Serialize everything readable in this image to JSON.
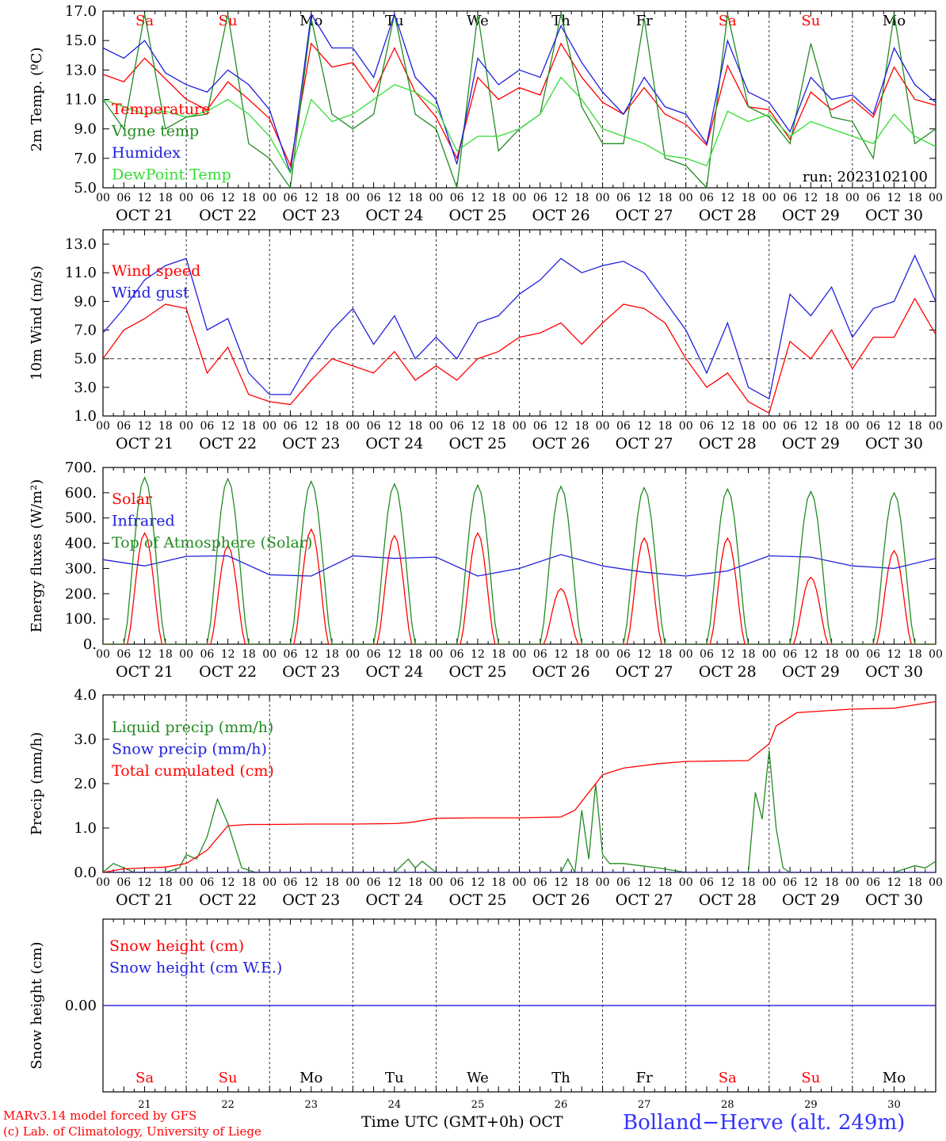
{
  "x_axis": {
    "days": 10,
    "hour_labels": [
      "00",
      "06",
      "12",
      "18"
    ],
    "end_label": "00",
    "date_labels": [
      "OCT 21",
      "OCT 22",
      "OCT 23",
      "OCT 24",
      "OCT 25",
      "OCT 26",
      "OCT 27",
      "OCT 28",
      "OCT 29",
      "OCT 30"
    ],
    "weekday_labels": [
      "Sa",
      "Su",
      "Mo",
      "Tu",
      "We",
      "Th",
      "Fr",
      "Sa",
      "Su",
      "Mo"
    ],
    "weekday_colors": [
      "#ff0000",
      "#ff0000",
      "#000000",
      "#000000",
      "#000000",
      "#000000",
      "#000000",
      "#ff0000",
      "#ff0000",
      "#000000"
    ],
    "day_numbers": [
      "21",
      "22",
      "23",
      "24",
      "25",
      "26",
      "27",
      "28",
      "29",
      "30"
    ],
    "title": "Time UTC (GMT+0h)",
    "month": "OCT"
  },
  "footer": {
    "credit_line1": "MARv3.14 model forced by GFS",
    "credit_line2": "(c) Lab. of Climatology, University of Liege",
    "location": "Bolland−Herve (alt. 249m)"
  },
  "chart_data": [
    {
      "type": "line",
      "ylabel": "2m Temp. (ºC)",
      "ylim": [
        5.0,
        17.0
      ],
      "yticks": [
        "5.0",
        "7.0",
        "9.0",
        "11.0",
        "13.0",
        "15.0",
        "17.0"
      ],
      "annotation": "run: 2023102100",
      "x_unit": "hours since Oct 21 00 UTC",
      "series": [
        {
          "name": "Temperature",
          "color": "#ff0000",
          "x": [
            0,
            6,
            12,
            18,
            24,
            30,
            36,
            42,
            48,
            54,
            60,
            66,
            72,
            78,
            84,
            90,
            96,
            102,
            108,
            114,
            120,
            126,
            132,
            138,
            144,
            150,
            156,
            162,
            168,
            174,
            180,
            186,
            192,
            198,
            204,
            210,
            216,
            222,
            228,
            234,
            240
          ],
          "y": [
            12.7,
            12.2,
            13.8,
            12.4,
            11.0,
            10.3,
            12.2,
            11.0,
            9.7,
            6.5,
            14.8,
            13.2,
            13.5,
            11.5,
            14.5,
            11.5,
            9.8,
            7.0,
            12.5,
            11.0,
            11.8,
            11.3,
            14.8,
            12.5,
            10.8,
            10.0,
            11.8,
            10.0,
            9.3,
            7.9,
            13.3,
            10.5,
            10.3,
            8.3,
            11.5,
            10.3,
            11.0,
            9.8,
            13.2,
            11.0,
            10.6
          ]
        },
        {
          "name": "Vigne temp",
          "color": "#228b22",
          "x": [
            0,
            6,
            12,
            18,
            24,
            30,
            36,
            42,
            48,
            54,
            60,
            66,
            72,
            78,
            84,
            90,
            96,
            102,
            108,
            114,
            120,
            126,
            132,
            138,
            144,
            150,
            156,
            162,
            168,
            174,
            180,
            186,
            192,
            198,
            204,
            210,
            216,
            222,
            228,
            234,
            240
          ],
          "y": [
            11.0,
            9.0,
            16.8,
            9.0,
            9.8,
            10.0,
            16.8,
            8.0,
            7.0,
            5.0,
            16.5,
            10.0,
            9.0,
            10.0,
            16.8,
            10.0,
            9.0,
            5.0,
            16.8,
            7.5,
            9.0,
            10.0,
            16.8,
            10.5,
            8.0,
            8.0,
            16.5,
            7.0,
            6.5,
            5.0,
            16.8,
            10.5,
            9.8,
            8.0,
            14.8,
            9.8,
            9.5,
            7.0,
            16.8,
            8.0,
            9.0
          ]
        },
        {
          "name": "Humidex",
          "color": "#2020dd",
          "x": [
            0,
            6,
            12,
            18,
            24,
            30,
            36,
            42,
            48,
            54,
            60,
            66,
            72,
            78,
            84,
            90,
            96,
            102,
            108,
            114,
            120,
            126,
            132,
            138,
            144,
            150,
            156,
            162,
            168,
            174,
            180,
            186,
            192,
            198,
            204,
            210,
            216,
            222,
            228,
            234,
            240
          ],
          "y": [
            14.5,
            13.8,
            15.0,
            12.8,
            12.0,
            11.5,
            13.0,
            12.0,
            10.3,
            6.0,
            16.8,
            14.5,
            14.5,
            12.5,
            16.8,
            12.5,
            11.0,
            6.6,
            13.8,
            12.0,
            13.0,
            12.5,
            16.0,
            13.5,
            11.5,
            10.0,
            12.5,
            10.5,
            10.0,
            8.0,
            15.0,
            11.5,
            10.8,
            8.8,
            12.5,
            11.0,
            11.3,
            10.0,
            14.5,
            12.0,
            10.8
          ]
        },
        {
          "name": "DewPoint Temp",
          "color": "#33dd33",
          "x": [
            0,
            6,
            12,
            18,
            24,
            30,
            36,
            42,
            48,
            54,
            60,
            66,
            72,
            78,
            84,
            90,
            96,
            102,
            108,
            114,
            120,
            126,
            132,
            138,
            144,
            150,
            156,
            162,
            168,
            174,
            180,
            186,
            192,
            198,
            204,
            210,
            216,
            222,
            228,
            234,
            240
          ],
          "y": [
            11.0,
            10.5,
            10.0,
            10.2,
            9.8,
            10.2,
            11.0,
            10.0,
            8.5,
            6.0,
            11.0,
            9.5,
            10.0,
            11.0,
            12.0,
            11.5,
            10.5,
            7.5,
            8.5,
            8.5,
            9.0,
            10.0,
            12.5,
            11.0,
            9.0,
            8.5,
            8.0,
            7.2,
            7.0,
            6.5,
            10.2,
            9.5,
            10.0,
            8.5,
            9.5,
            9.0,
            8.5,
            8.0,
            10.0,
            8.5,
            7.8
          ]
        }
      ]
    },
    {
      "type": "line",
      "ylabel": "10m Wind (m/s)",
      "ylim": [
        1.0,
        14.0
      ],
      "yticks": [
        "1.0",
        "3.0",
        "5.0",
        "7.0",
        "9.0",
        "11.0",
        "13.0"
      ],
      "reference_line": 5.0,
      "series": [
        {
          "name": "Wind speed",
          "color": "#ff0000",
          "x": [
            0,
            6,
            12,
            18,
            24,
            30,
            36,
            42,
            48,
            54,
            60,
            66,
            72,
            78,
            84,
            90,
            96,
            102,
            108,
            114,
            120,
            126,
            132,
            138,
            144,
            150,
            156,
            162,
            168,
            174,
            180,
            186,
            192,
            198,
            204,
            210,
            216,
            222,
            228,
            234,
            240
          ],
          "y": [
            5.0,
            7.0,
            7.8,
            8.8,
            8.5,
            4.0,
            5.8,
            2.5,
            2.0,
            1.8,
            3.5,
            5.0,
            4.5,
            4.0,
            5.5,
            3.5,
            4.5,
            3.5,
            5.0,
            5.5,
            6.5,
            6.8,
            7.5,
            6.0,
            7.5,
            8.8,
            8.5,
            7.5,
            5.0,
            3.0,
            4.0,
            2.0,
            1.2,
            6.2,
            5.0,
            7.0,
            4.3,
            6.5,
            6.5,
            9.2,
            6.7
          ]
        },
        {
          "name": "Wind gust",
          "color": "#2020dd",
          "x": [
            0,
            6,
            12,
            18,
            24,
            30,
            36,
            42,
            48,
            54,
            60,
            66,
            72,
            78,
            84,
            90,
            96,
            102,
            108,
            114,
            120,
            126,
            132,
            138,
            144,
            150,
            156,
            162,
            168,
            174,
            180,
            186,
            192,
            198,
            204,
            210,
            216,
            222,
            228,
            234,
            240
          ],
          "y": [
            6.8,
            8.5,
            10.5,
            11.5,
            12.0,
            7.0,
            7.8,
            4.0,
            2.5,
            2.5,
            5.0,
            7.0,
            8.5,
            6.0,
            8.0,
            5.0,
            6.5,
            5.0,
            7.5,
            8.0,
            9.5,
            10.5,
            12.0,
            11.0,
            11.5,
            11.8,
            11.0,
            9.0,
            7.0,
            4.0,
            7.5,
            3.0,
            2.2,
            9.5,
            8.0,
            10.0,
            6.5,
            8.5,
            9.0,
            12.2,
            9.0
          ]
        }
      ]
    },
    {
      "type": "line",
      "ylabel": "Energy fluxes (W/m²)",
      "ylim": [
        0,
        700
      ],
      "yticks": [
        "0.",
        "100.",
        "200.",
        "300.",
        "400.",
        "500.",
        "600.",
        "700."
      ],
      "series": [
        {
          "name": "Solar",
          "color": "#ff0000",
          "peaks": [
            440,
            390,
            455,
            430,
            440,
            220,
            420,
            420,
            265,
            370
          ],
          "half_width_h": 5.0
        },
        {
          "name": "Infrared",
          "color": "#2020dd",
          "x": [
            0,
            12,
            24,
            36,
            48,
            60,
            72,
            84,
            96,
            108,
            120,
            132,
            144,
            156,
            168,
            180,
            192,
            204,
            216,
            228,
            240
          ],
          "y": [
            335,
            310,
            348,
            350,
            275,
            270,
            350,
            340,
            345,
            270,
            300,
            355,
            310,
            285,
            270,
            290,
            350,
            345,
            310,
            300,
            340
          ]
        },
        {
          "name": "Top of Atmosphere (Solar)",
          "color": "#228b22",
          "peaks": [
            660,
            655,
            645,
            635,
            630,
            625,
            620,
            615,
            605,
            600
          ],
          "half_width_h": 6.0
        }
      ]
    },
    {
      "type": "line",
      "ylabel": "Precip (mm/h)",
      "ylim": [
        0.0,
        4.0
      ],
      "yticks": [
        "0.0",
        "1.0",
        "2.0",
        "3.0",
        "4.0"
      ],
      "series": [
        {
          "name": "Liquid precip (mm/h)",
          "color": "#228b22",
          "x": [
            0,
            3,
            6,
            9,
            12,
            18,
            22,
            24,
            27,
            30,
            33,
            36,
            40,
            44,
            48,
            60,
            84,
            88,
            90,
            92,
            96,
            110,
            120,
            132,
            134,
            136,
            138,
            140,
            142,
            144,
            146,
            150,
            160,
            168,
            186,
            188,
            190,
            192,
            194,
            196,
            198,
            202,
            216,
            228,
            234,
            237,
            240
          ],
          "y": [
            0,
            0.2,
            0.1,
            0,
            0,
            0,
            0.1,
            0.4,
            0.3,
            0.8,
            1.65,
            1.1,
            0.1,
            0,
            0,
            0,
            0,
            0.3,
            0.1,
            0.25,
            0,
            0,
            0,
            0,
            0.3,
            0,
            1.4,
            0.3,
            2.0,
            0.4,
            0.2,
            0.2,
            0.1,
            0,
            0,
            1.8,
            1.2,
            2.75,
            1.0,
            0.1,
            0,
            0,
            0,
            0,
            0.15,
            0.1,
            0.25
          ]
        },
        {
          "name": "Snow precip (mm/h)",
          "color": "#2020dd",
          "x": [
            0,
            240
          ],
          "y": [
            0,
            0
          ]
        },
        {
          "name": "Total cumulated (cm)",
          "color": "#ff0000",
          "x": [
            0,
            6,
            12,
            18,
            24,
            30,
            36,
            42,
            48,
            60,
            72,
            84,
            88,
            96,
            108,
            120,
            132,
            136,
            140,
            144,
            150,
            160,
            168,
            186,
            192,
            194,
            200,
            216,
            228,
            240
          ],
          "y": [
            0,
            0.08,
            0.1,
            0.12,
            0.2,
            0.5,
            1.05,
            1.08,
            1.08,
            1.09,
            1.09,
            1.1,
            1.12,
            1.22,
            1.23,
            1.23,
            1.25,
            1.4,
            1.8,
            2.2,
            2.35,
            2.45,
            2.5,
            2.52,
            2.9,
            3.3,
            3.6,
            3.68,
            3.7,
            3.85
          ]
        }
      ]
    },
    {
      "type": "line",
      "ylabel": "Snow height (cm)",
      "ylim": [
        -1.0,
        1.0
      ],
      "yticks": [
        "0.00"
      ],
      "series": [
        {
          "name": "Snow height (cm)",
          "color": "#ff0000",
          "x": [
            0,
            240
          ],
          "y": [
            0,
            0
          ]
        },
        {
          "name": "Snow height (cm W.E.)",
          "color": "#2020dd",
          "x": [
            0,
            240
          ],
          "y": [
            0,
            0
          ]
        }
      ]
    }
  ]
}
